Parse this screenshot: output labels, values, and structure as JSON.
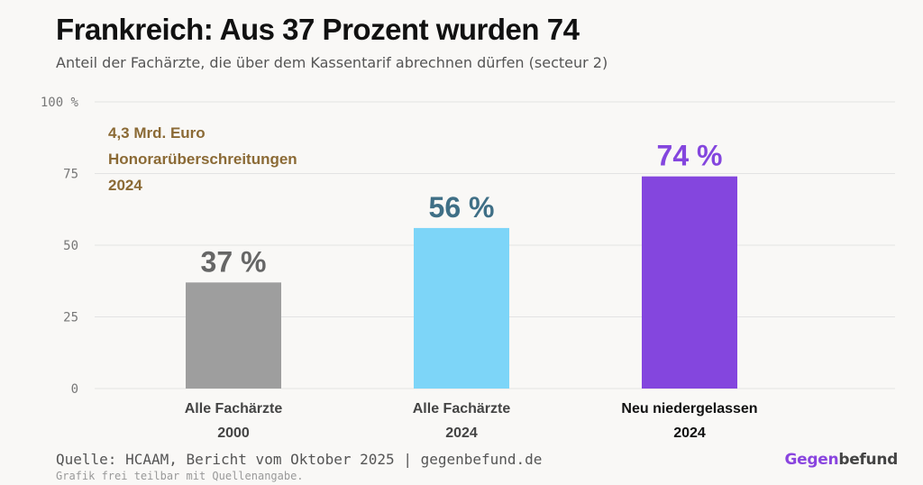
{
  "title": "Frankreich: Aus 37 Prozent wurden 74",
  "subtitle": "Anteil der Fachärzte, die über dem Kassentarif abrechnen dürfen (secteur 2)",
  "annotation": {
    "lines": [
      "4,3 Mrd. Euro",
      "Honorarüberschreitungen",
      "2024"
    ],
    "color": "#8b6a35"
  },
  "chart_data": {
    "type": "bar",
    "title": "Frankreich: Aus 37 Prozent wurden 74",
    "subtitle": "Anteil der Fachärzte, die über dem Kassentarif abrechnen dürfen (secteur 2)",
    "xlabel": "",
    "ylabel": "",
    "ylim": [
      0,
      100
    ],
    "yticks": [
      {
        "value": 0,
        "label": "0"
      },
      {
        "value": 25,
        "label": "25"
      },
      {
        "value": 50,
        "label": "50"
      },
      {
        "value": 75,
        "label": "75"
      },
      {
        "value": 100,
        "label": "100 %"
      }
    ],
    "grid": true,
    "bars": [
      {
        "label_line1": "Alle Fachärzte",
        "label_line2": "2000",
        "value": 37,
        "value_label": "37 %",
        "color": "#9e9e9e",
        "value_color": "#666666",
        "label_color": "#444444"
      },
      {
        "label_line1": "Alle Fachärzte",
        "label_line2": "2024",
        "value": 56,
        "value_label": "56 %",
        "color": "#7dd5f8",
        "value_color": "#3f6f86",
        "label_color": "#444444"
      },
      {
        "label_line1": "Neu niedergelassen",
        "label_line2": "2024",
        "value": 74,
        "value_label": "74 %",
        "color": "#8446de",
        "value_color": "#8446de",
        "label_color": "#111111"
      }
    ]
  },
  "footer": {
    "source": "Quelle: HCAAM, Bericht vom Oktober 2025 | gegenbefund.de",
    "note": "Grafik frei teilbar mit Quellenangabe.",
    "brand_part1": "Gegen",
    "brand_part2": "befund"
  }
}
